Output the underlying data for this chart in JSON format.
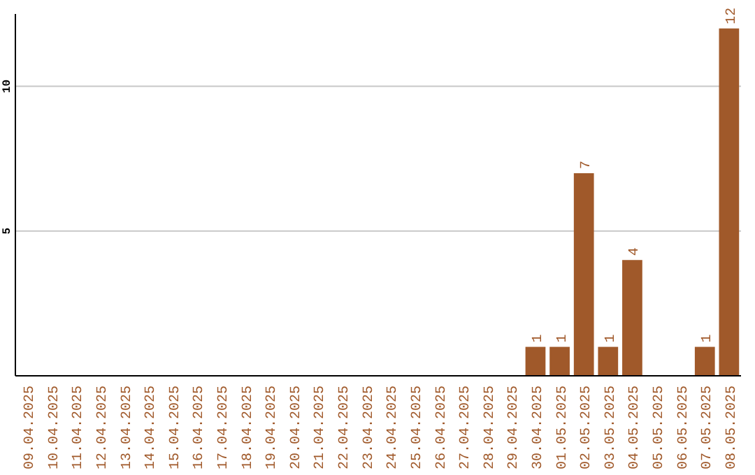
{
  "chart_data": {
    "type": "bar",
    "categories": [
      "09.04.2025",
      "10.04.2025",
      "11.04.2025",
      "12.04.2025",
      "13.04.2025",
      "14.04.2025",
      "15.04.2025",
      "16.04.2025",
      "17.04.2025",
      "18.04.2025",
      "19.04.2025",
      "20.04.2025",
      "21.04.2025",
      "22.04.2025",
      "23.04.2025",
      "24.04.2025",
      "25.04.2025",
      "26.04.2025",
      "27.04.2025",
      "28.04.2025",
      "29.04.2025",
      "30.04.2025",
      "01.05.2025",
      "02.05.2025",
      "03.05.2025",
      "04.05.2025",
      "05.05.2025",
      "06.05.2025",
      "07.05.2025",
      "08.05.2025"
    ],
    "values": [
      0,
      0,
      0,
      0,
      0,
      0,
      0,
      0,
      0,
      0,
      0,
      0,
      0,
      0,
      0,
      0,
      0,
      0,
      0,
      0,
      0,
      1,
      1,
      7,
      1,
      4,
      0,
      0,
      1,
      12
    ],
    "value_labels": [
      null,
      null,
      null,
      null,
      null,
      null,
      null,
      null,
      null,
      null,
      null,
      null,
      null,
      null,
      null,
      null,
      null,
      null,
      null,
      null,
      null,
      "1",
      "1",
      "7",
      "1",
      "4",
      null,
      null,
      "1",
      "12"
    ],
    "color": "#a0592a",
    "ylim": [
      0,
      12.5
    ],
    "yticks": [
      5,
      10
    ],
    "grid": "y"
  }
}
